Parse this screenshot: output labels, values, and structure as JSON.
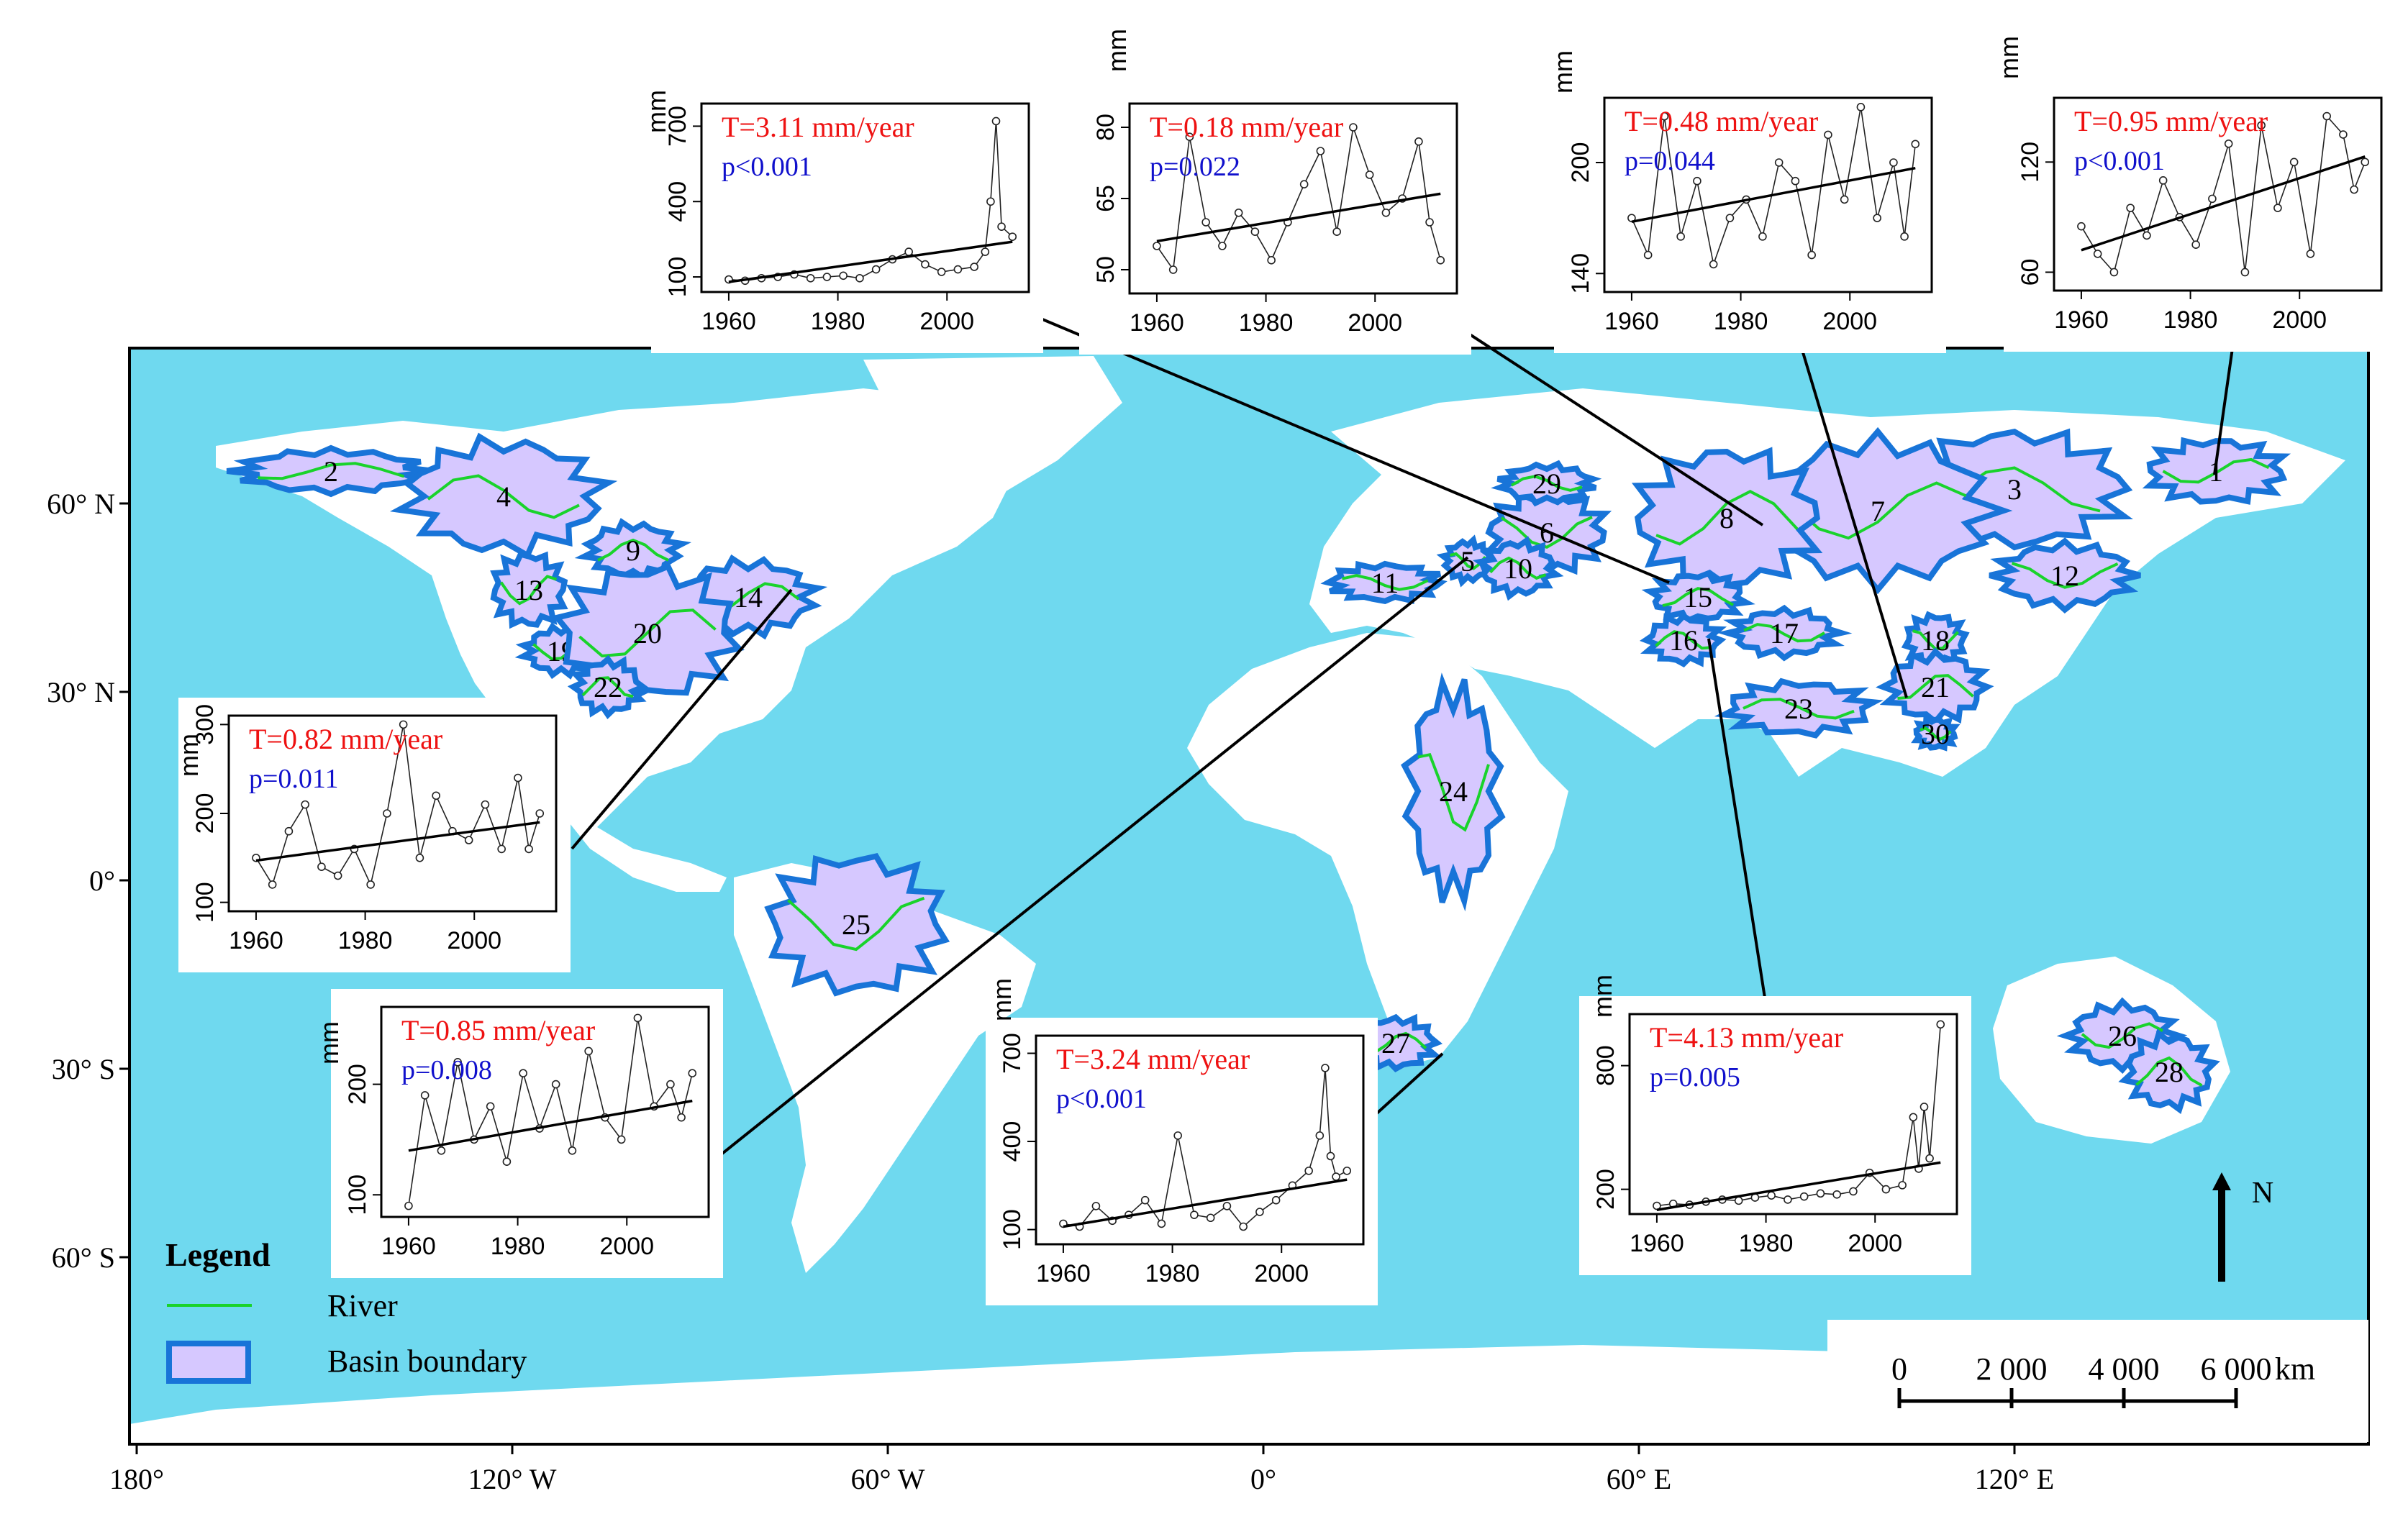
{
  "map": {
    "ocean_color": "#6fd9ef",
    "land_color": "#ffffff",
    "basin_fill": "#d6c8ff",
    "basin_edge": "#1874d8",
    "river_color": "#19d32b",
    "lon_labels": [
      "180°",
      "120° W",
      "60° W",
      "0°",
      "60° E",
      "120° E"
    ],
    "lat_labels": [
      "60° N",
      "30° N",
      "0°",
      "30° S",
      "60° S"
    ],
    "basin_labels": [
      "1",
      "2",
      "3",
      "4",
      "5",
      "6",
      "7",
      "8",
      "9",
      "10",
      "11",
      "12",
      "13",
      "14",
      "15",
      "16",
      "17",
      "18",
      "19",
      "20",
      "21",
      "22",
      "23",
      "24",
      "25",
      "26",
      "27",
      "28",
      "29",
      "30"
    ]
  },
  "legend": {
    "title": "Legend",
    "river_label": "River",
    "basin_label": "Basin boundary"
  },
  "scale_bar": {
    "ticks": [
      "0",
      "2 000",
      "4 000",
      "6 000"
    ],
    "unit": "km"
  },
  "north_arrow": {
    "label": "N"
  },
  "colors": {
    "trend_text": "#ee1111",
    "p_text": "#1010cc"
  },
  "chart_data": [
    {
      "type": "line",
      "ylabel": "mm",
      "x": [
        1960,
        1963,
        1966,
        1969,
        1972,
        1975,
        1978,
        1981,
        1984,
        1987,
        1990,
        1993,
        1996,
        1999,
        2002,
        2005,
        2007,
        2008,
        2009,
        2010,
        2012
      ],
      "values": [
        90,
        85,
        95,
        100,
        110,
        95,
        100,
        105,
        95,
        130,
        170,
        200,
        150,
        120,
        130,
        140,
        200,
        400,
        720,
        300,
        260
      ],
      "fit": [
        [
          1960,
          80
        ],
        [
          2012,
          240
        ]
      ],
      "trend": "T=3.11 mm/year",
      "pvalue": "p<0.001",
      "xticks": [
        1960,
        1980,
        2000
      ],
      "yticks": [
        100,
        400,
        700
      ],
      "xlim": [
        1955,
        2015
      ],
      "ylim": [
        40,
        790
      ]
    },
    {
      "type": "line",
      "ylabel": "mm",
      "x": [
        1960,
        1963,
        1966,
        1969,
        1972,
        1975,
        1978,
        1981,
        1984,
        1987,
        1990,
        1993,
        1996,
        1999,
        2002,
        2005,
        2008,
        2010,
        2012
      ],
      "values": [
        55,
        50,
        78,
        60,
        55,
        62,
        58,
        52,
        60,
        68,
        75,
        58,
        80,
        70,
        62,
        65,
        77,
        60,
        52
      ],
      "fit": [
        [
          1960,
          56
        ],
        [
          2012,
          66
        ]
      ],
      "trend": "T=0.18 mm/year",
      "pvalue": "p=0.022",
      "xticks": [
        1960,
        1980,
        2000
      ],
      "yticks": [
        50,
        65,
        80
      ],
      "xlim": [
        1955,
        2015
      ],
      "ylim": [
        45,
        85
      ]
    },
    {
      "type": "line",
      "ylabel": "mm",
      "x": [
        1960,
        1963,
        1966,
        1969,
        1972,
        1975,
        1978,
        1981,
        1984,
        1987,
        1990,
        1993,
        1996,
        1999,
        2002,
        2005,
        2008,
        2010,
        2012
      ],
      "values": [
        170,
        150,
        225,
        160,
        190,
        145,
        170,
        180,
        160,
        200,
        190,
        150,
        215,
        180,
        230,
        170,
        200,
        160,
        210
      ],
      "fit": [
        [
          1960,
          168
        ],
        [
          2012,
          197
        ]
      ],
      "trend": "T=0.48 mm/year",
      "pvalue": "p=0.044",
      "xticks": [
        1960,
        1980,
        2000
      ],
      "yticks": [
        140,
        200
      ],
      "xlim": [
        1955,
        2015
      ],
      "ylim": [
        130,
        235
      ]
    },
    {
      "type": "line",
      "ylabel": "mm",
      "x": [
        1960,
        1963,
        1966,
        1969,
        1972,
        1975,
        1978,
        1981,
        1984,
        1987,
        1990,
        1993,
        1996,
        1999,
        2002,
        2005,
        2008,
        2010,
        2012
      ],
      "values": [
        85,
        70,
        60,
        95,
        80,
        110,
        90,
        75,
        100,
        130,
        60,
        140,
        95,
        120,
        70,
        145,
        135,
        105,
        120
      ],
      "fit": [
        [
          1960,
          72
        ],
        [
          2012,
          123
        ]
      ],
      "trend": "T=0.95 mm/year",
      "pvalue": "p<0.001",
      "xticks": [
        1960,
        1980,
        2000
      ],
      "yticks": [
        60,
        120
      ],
      "xlim": [
        1955,
        2015
      ],
      "ylim": [
        50,
        155
      ]
    },
    {
      "type": "line",
      "ylabel": "mm",
      "x": [
        1960,
        1963,
        1966,
        1969,
        1972,
        1975,
        1978,
        1981,
        1984,
        1987,
        1990,
        1993,
        1996,
        1999,
        2002,
        2005,
        2008,
        2010,
        2012
      ],
      "values": [
        150,
        120,
        180,
        210,
        140,
        130,
        160,
        120,
        200,
        300,
        150,
        220,
        180,
        170,
        210,
        160,
        240,
        160,
        200
      ],
      "fit": [
        [
          1960,
          147
        ],
        [
          2012,
          190
        ]
      ],
      "trend": "T=0.82 mm/year",
      "pvalue": "p=0.011",
      "xticks": [
        1960,
        1980,
        2000
      ],
      "yticks": [
        100,
        200,
        300
      ],
      "xlim": [
        1955,
        2015
      ],
      "ylim": [
        90,
        310
      ]
    },
    {
      "type": "line",
      "ylabel": "mm",
      "x": [
        1960,
        1963,
        1966,
        1969,
        1972,
        1975,
        1978,
        1981,
        1984,
        1987,
        1990,
        1993,
        1996,
        1999,
        2002,
        2005,
        2008,
        2010,
        2012
      ],
      "values": [
        90,
        190,
        140,
        220,
        150,
        180,
        130,
        210,
        160,
        200,
        140,
        230,
        170,
        150,
        260,
        180,
        200,
        170,
        210
      ],
      "fit": [
        [
          1960,
          140
        ],
        [
          2012,
          185
        ]
      ],
      "trend": "T=0.85 mm/year",
      "pvalue": "p=0.008",
      "xticks": [
        1960,
        1980,
        2000
      ],
      "yticks": [
        100,
        200
      ],
      "xlim": [
        1955,
        2015
      ],
      "ylim": [
        80,
        270
      ]
    },
    {
      "type": "line",
      "ylabel": "mm",
      "x": [
        1960,
        1963,
        1966,
        1969,
        1972,
        1975,
        1978,
        1981,
        1984,
        1987,
        1990,
        1993,
        1996,
        1999,
        2002,
        2005,
        2007,
        2008,
        2009,
        2010,
        2012
      ],
      "values": [
        120,
        110,
        180,
        130,
        150,
        200,
        120,
        420,
        150,
        140,
        180,
        110,
        160,
        200,
        250,
        300,
        420,
        650,
        350,
        280,
        300
      ],
      "fit": [
        [
          1960,
          110
        ],
        [
          2012,
          270
        ]
      ],
      "trend": "T=3.24 mm/year",
      "pvalue": "p<0.001",
      "xticks": [
        1960,
        1980,
        2000
      ],
      "yticks": [
        100,
        400,
        700
      ],
      "xlim": [
        1955,
        2015
      ],
      "ylim": [
        50,
        760
      ]
    },
    {
      "type": "line",
      "ylabel": "mm",
      "x": [
        1960,
        1963,
        1966,
        1969,
        1972,
        1975,
        1978,
        1981,
        1984,
        1987,
        1990,
        1993,
        1996,
        1999,
        2002,
        2005,
        2007,
        2008,
        2009,
        2010,
        2012
      ],
      "values": [
        120,
        130,
        125,
        140,
        150,
        145,
        160,
        170,
        150,
        165,
        180,
        175,
        190,
        280,
        200,
        220,
        550,
        300,
        600,
        350,
        1000
      ],
      "fit": [
        [
          1960,
          100
        ],
        [
          2012,
          330
        ]
      ],
      "trend": "T=4.13 mm/year",
      "pvalue": "p=0.005",
      "xticks": [
        1960,
        1980,
        2000
      ],
      "yticks": [
        200,
        800
      ],
      "xlim": [
        1955,
        2015
      ],
      "ylim": [
        80,
        1050
      ]
    }
  ]
}
